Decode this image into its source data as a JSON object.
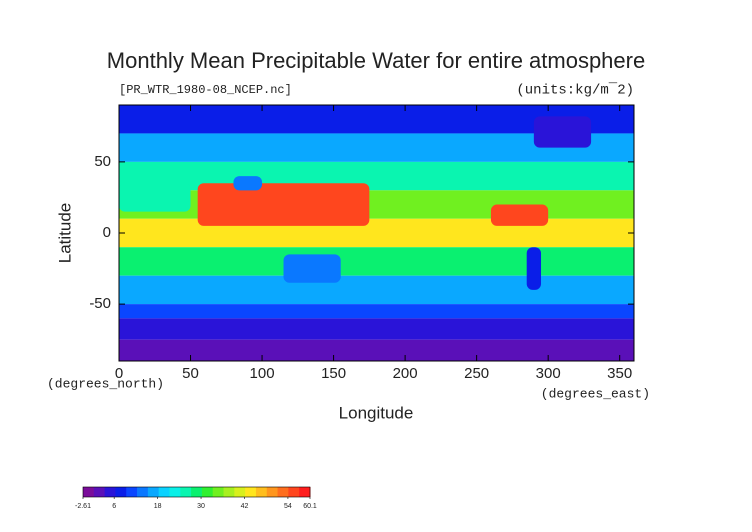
{
  "chart_data": {
    "type": "contour-map",
    "title": "Monthly Mean Precipitable Water for entire atmosphere",
    "subtitle": "[PR_WTR_1980-08_NCEP.nc]",
    "units": "(units:kg/m¯2)",
    "x_label": "Longitude",
    "y_label": "Latitude",
    "x_unit": "(degrees_east)",
    "y_unit": "(degrees_north)",
    "xlim": [
      0,
      360
    ],
    "ylim": [
      -90,
      90
    ],
    "xticks": [
      0,
      50,
      100,
      150,
      200,
      250,
      300,
      350
    ],
    "yticks": [
      -50,
      0,
      50
    ],
    "field": {
      "lat_edges": [
        90,
        70,
        50,
        30,
        10,
        -10,
        -30,
        -50,
        -60,
        -75,
        -90
      ],
      "values": [
        9,
        17,
        25,
        36,
        44,
        30,
        17,
        10,
        5,
        1
      ]
    },
    "patches": [
      {
        "lon": [
          55,
          175
        ],
        "lat": [
          5,
          35
        ],
        "value": 55
      },
      {
        "lon": [
          80,
          100
        ],
        "lat": [
          30,
          40
        ],
        "value": 14
      },
      {
        "lon": [
          260,
          300
        ],
        "lat": [
          5,
          20
        ],
        "value": 55
      },
      {
        "lon": [
          0,
          50
        ],
        "lat": [
          15,
          35
        ],
        "value": 26
      },
      {
        "lon": [
          290,
          330
        ],
        "lat": [
          60,
          82
        ],
        "value": 6
      },
      {
        "lon": [
          115,
          155
        ],
        "lat": [
          -35,
          -15
        ],
        "value": 14
      },
      {
        "lon": [
          285,
          295
        ],
        "lat": [
          -40,
          -10
        ],
        "value": 8
      }
    ],
    "colorbar": {
      "lim": [
        -2.61,
        60.1
      ],
      "ticks": [
        -2.61,
        6,
        18,
        30,
        42,
        54,
        60.1
      ],
      "colors": [
        "#7a0d9a",
        "#5a10b8",
        "#2a14d8",
        "#0a1ee8",
        "#0a46ff",
        "#0a78ff",
        "#0aa8ff",
        "#0ad2ff",
        "#0af0e8",
        "#0af5b0",
        "#0af070",
        "#30f030",
        "#70f020",
        "#a8f020",
        "#d8f01e",
        "#ffe61e",
        "#ffbe1e",
        "#ff961e",
        "#ff6e1e",
        "#ff461e",
        "#ff1e1e"
      ]
    }
  }
}
